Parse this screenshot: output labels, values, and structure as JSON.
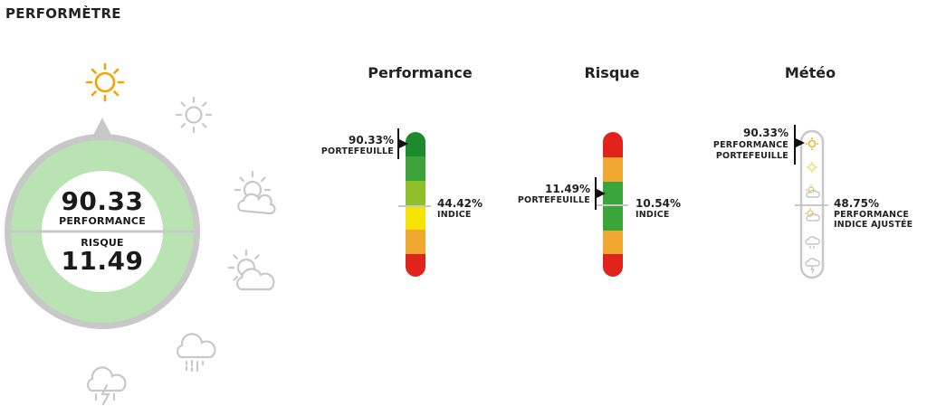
{
  "page": {
    "title": "PERFORMÈTRE"
  },
  "gauge": {
    "performance_value": "90.33",
    "performance_label": "PERFORMANCE",
    "risk_label": "RISQUE",
    "risk_value": "11.49",
    "weather_icons": [
      "sun-icon",
      "sun-outline-icon",
      "sun-behind-cloud-icon",
      "partly-cloudy-icon",
      "rain-cloud-icon",
      "thunderstorm-icon"
    ],
    "colors": {
      "ring": "#c8c8c8",
      "inner": "#b9e3b3",
      "active_sun": "#f4a300"
    }
  },
  "performance": {
    "title": "Performance",
    "portfolio_value": "90.33%",
    "portfolio_label": "PORTEFEUILLE",
    "index_value": "44.42%",
    "index_label": "INDICE"
  },
  "risk": {
    "title": "Risque",
    "portfolio_value": "11.49%",
    "portfolio_label": "PORTEFEUILLE",
    "index_value": "10.54%",
    "index_label": "INDICE"
  },
  "weather": {
    "title": "Météo",
    "portfolio_value": "90.33%",
    "portfolio_label_1": "PERFORMANCE",
    "portfolio_label_2": "PORTEFEUILLE",
    "index_value": "48.75%",
    "index_label_1": "PERFORMANCE",
    "index_label_2": "INDICE AJUSTÉE"
  },
  "scale_colors": {
    "performance": [
      "#1e8a2e",
      "#3da23a",
      "#8fbf2a",
      "#f5e400",
      "#f0a830",
      "#e0231b"
    ],
    "risk": [
      "#e0231b",
      "#f0a830",
      "#3aa53a",
      "#3aa53a",
      "#f0a830",
      "#e0231b"
    ]
  }
}
